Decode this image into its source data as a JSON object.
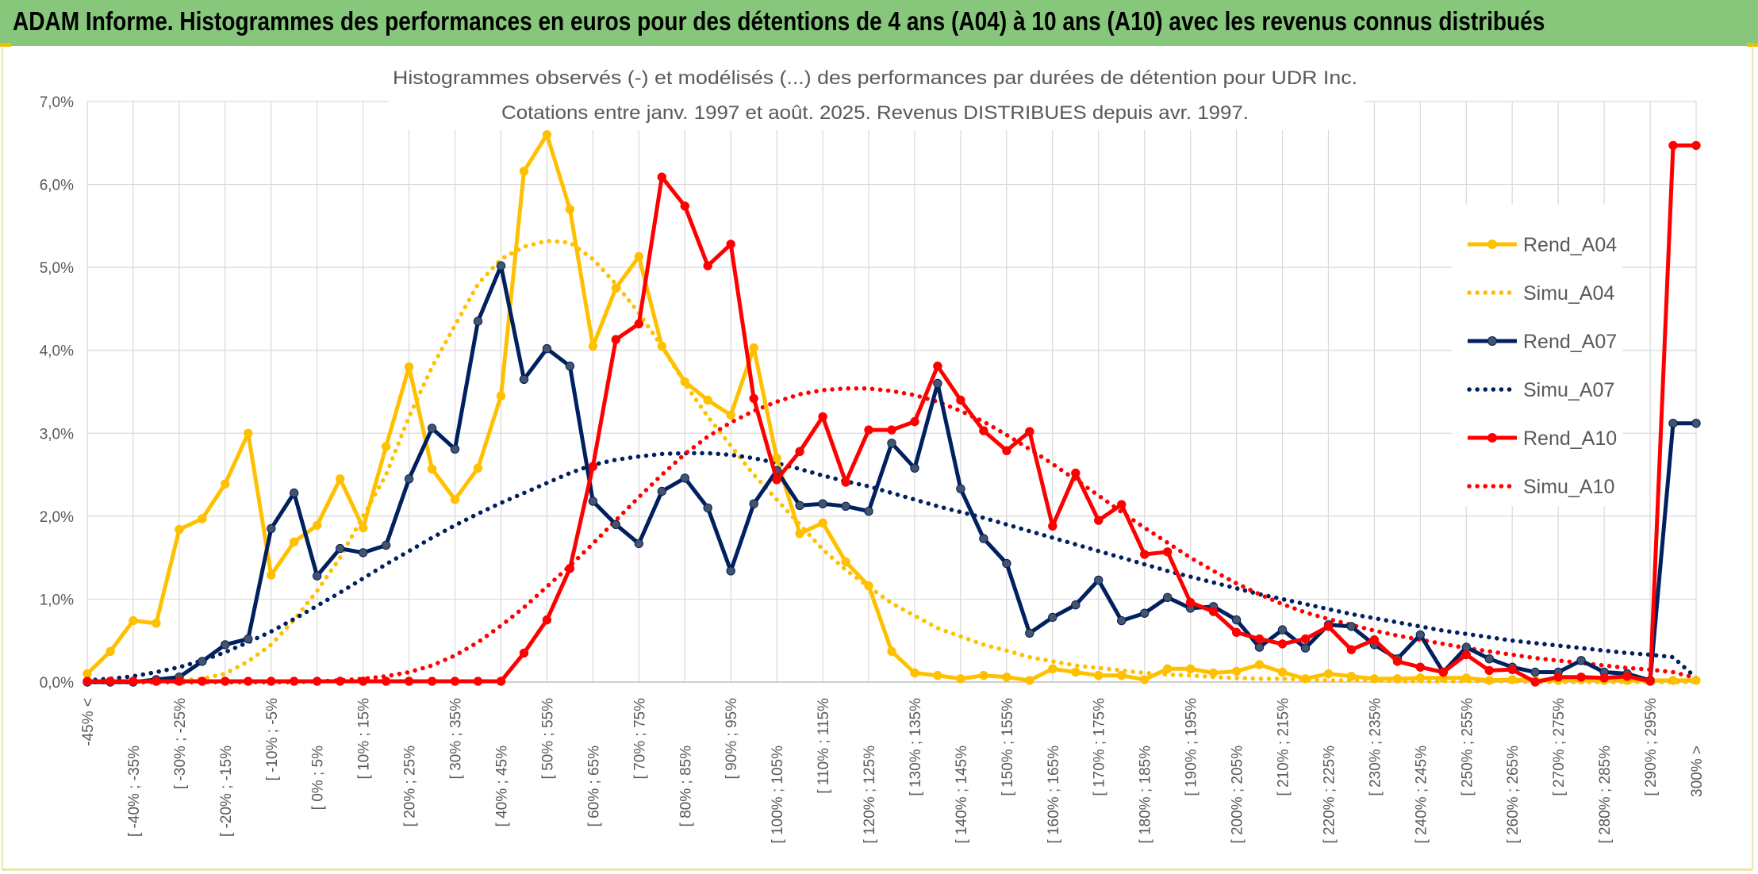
{
  "banner": {
    "title": "ADAM Informe. Histogrammes des performances en euros pour des détentions de 4 ans (A04) à 10 ans (A10) avec les revenus connus distribués"
  },
  "colors": {
    "banner_bg": "#86c77b",
    "rend_a04": "#ffc000",
    "rend_a07": "#002060",
    "rend_a10": "#ff0000",
    "grid": "#d9d9d9",
    "text": "#595959"
  },
  "chart_data": {
    "type": "line",
    "title": "Histogrammes observés (-) et modélisés (...) des performances par durées de détention pour UDR Inc.",
    "subtitle": "Cotations entre janv. 1997 et août. 2025. Revenus DISTRIBUES depuis avr. 1997.",
    "xlabel": "",
    "ylabel": "",
    "ylim": [
      0,
      7
    ],
    "y_ticks": [
      "0,0%",
      "1,0%",
      "2,0%",
      "3,0%",
      "4,0%",
      "5,0%",
      "6,0%",
      "7,0%"
    ],
    "legend_position": "right",
    "grid": true,
    "categories": [
      "-45% <",
      "[ -45% ; -40%",
      "[ -40% ; -35%",
      "[ -35% ; -30%",
      "[ -30% ; -25%",
      "[ -25% ; -20%",
      "[ -20% ; -15%",
      "[ -15% ; -10%",
      "[ -10% ; -5%",
      "[ -5% ; 0%",
      "[ 0% ; 5%",
      "[ 5% ; 10%",
      "[ 10% ; 15%",
      "[ 15% ; 20%",
      "[ 20% ; 25%",
      "[ 25% ; 30%",
      "[ 30% ; 35%",
      "[ 35% ; 40%",
      "[ 40% ; 45%",
      "[ 45% ; 50%",
      "[ 50% ; 55%",
      "[ 55% ; 60%",
      "[ 60% ; 65%",
      "[ 65% ; 70%",
      "[ 70% ; 75%",
      "[ 75% ; 80%",
      "[ 80% ; 85%",
      "[ 85% ; 90%",
      "[ 90% ; 95%",
      "[ 95% ; 100%",
      "[ 100% ; 105%",
      "[ 105% ; 110%",
      "[ 110% ; 115%",
      "[ 115% ; 120%",
      "[ 120% ; 125%",
      "[ 125% ; 130%",
      "[ 130% ; 135%",
      "[ 135% ; 140%",
      "[ 140% ; 145%",
      "[ 145% ; 150%",
      "[ 150% ; 155%",
      "[ 155% ; 160%",
      "[ 160% ; 165%",
      "[ 165% ; 170%",
      "[ 170% ; 175%",
      "[ 175% ; 180%",
      "[ 180% ; 185%",
      "[ 185% ; 190%",
      "[ 190% ; 195%",
      "[ 195% ; 200%",
      "[ 200% ; 205%",
      "[ 205% ; 210%",
      "[ 210% ; 215%",
      "[ 215% ; 220%",
      "[ 220% ; 225%",
      "[ 225% ; 230%",
      "[ 230% ; 235%",
      "[ 235% ; 240%",
      "[ 240% ; 245%",
      "[ 245% ; 250%",
      "[ 250% ; 255%",
      "[ 255% ; 260%",
      "[ 260% ; 265%",
      "[ 265% ; 270%",
      "[ 270% ; 275%",
      "[ 275% ; 280%",
      "[ 280% ; 285%",
      "[ 285% ; 290%",
      "[ 290% ; 295%",
      "[ 295% ; 300%",
      "300% >"
    ],
    "label_every": 2,
    "series": [
      {
        "name": "Rend_A04",
        "style": "solid",
        "color": "#ffc000",
        "values": [
          0.1,
          0.37,
          0.74,
          0.71,
          1.84,
          1.97,
          2.39,
          3.0,
          1.29,
          1.69,
          1.89,
          2.45,
          1.86,
          2.84,
          3.8,
          2.57,
          2.2,
          2.58,
          3.45,
          6.16,
          6.6,
          5.7,
          4.05,
          4.75,
          5.13,
          4.05,
          3.62,
          3.4,
          3.22,
          4.03,
          2.7,
          1.79,
          1.92,
          1.45,
          1.16,
          0.37,
          0.11,
          0.08,
          0.04,
          0.08,
          0.06,
          0.02,
          0.16,
          0.12,
          0.08,
          0.08,
          0.03,
          0.16,
          0.16,
          0.11,
          0.13,
          0.21,
          0.12,
          0.04,
          0.1,
          0.07,
          0.04,
          0.04,
          0.05,
          0.05,
          0.05,
          0.02,
          0.03,
          0.02,
          0.02,
          0.03,
          0.02,
          0.02,
          0.02,
          0.02,
          0.02
        ]
      },
      {
        "name": "Simu_A04",
        "style": "dotted",
        "color": "#ffc000",
        "values": [
          0.0,
          0.0,
          0.0,
          0.0,
          0.02,
          0.04,
          0.1,
          0.25,
          0.45,
          0.75,
          1.1,
          1.5,
          2.0,
          2.5,
          3.2,
          3.8,
          4.3,
          4.8,
          5.1,
          5.25,
          5.32,
          5.3,
          5.1,
          4.8,
          4.45,
          4.05,
          3.6,
          3.2,
          2.85,
          2.5,
          2.2,
          1.9,
          1.6,
          1.35,
          1.15,
          0.95,
          0.8,
          0.65,
          0.55,
          0.45,
          0.38,
          0.3,
          0.25,
          0.2,
          0.17,
          0.14,
          0.11,
          0.09,
          0.08,
          0.06,
          0.05,
          0.04,
          0.04,
          0.03,
          0.02,
          0.02,
          0.02,
          0.01,
          0.01,
          0.01,
          0.01,
          0.01,
          0.01,
          0.0,
          0.0,
          0.0,
          0.0,
          0.0,
          0.0,
          0.0,
          0.0
        ]
      },
      {
        "name": "Rend_A07",
        "style": "solid",
        "color": "#002060",
        "values": [
          0.0,
          0.0,
          0.0,
          0.03,
          0.06,
          0.25,
          0.45,
          0.52,
          1.85,
          2.28,
          1.28,
          1.61,
          1.56,
          1.65,
          2.45,
          3.06,
          2.81,
          4.35,
          5.02,
          3.65,
          4.02,
          3.81,
          2.18,
          1.9,
          1.67,
          2.3,
          2.46,
          2.1,
          1.34,
          2.15,
          2.55,
          2.13,
          2.15,
          2.12,
          2.06,
          2.88,
          2.58,
          3.6,
          2.33,
          1.73,
          1.43,
          0.59,
          0.78,
          0.93,
          1.23,
          0.74,
          0.83,
          1.02,
          0.89,
          0.91,
          0.75,
          0.42,
          0.63,
          0.41,
          0.69,
          0.67,
          0.45,
          0.28,
          0.57,
          0.12,
          0.42,
          0.28,
          0.18,
          0.12,
          0.12,
          0.26,
          0.12,
          0.1,
          0.02,
          3.12,
          3.12
        ]
      },
      {
        "name": "Simu_A07",
        "style": "dotted",
        "color": "#002060",
        "values": [
          0.02,
          0.04,
          0.07,
          0.12,
          0.18,
          0.26,
          0.36,
          0.48,
          0.61,
          0.76,
          0.92,
          1.08,
          1.25,
          1.42,
          1.58,
          1.74,
          1.89,
          2.03,
          2.16,
          2.28,
          2.4,
          2.52,
          2.62,
          2.68,
          2.72,
          2.75,
          2.76,
          2.76,
          2.74,
          2.7,
          2.64,
          2.57,
          2.49,
          2.42,
          2.36,
          2.28,
          2.2,
          2.12,
          2.05,
          1.98,
          1.9,
          1.82,
          1.74,
          1.66,
          1.58,
          1.5,
          1.42,
          1.34,
          1.27,
          1.2,
          1.13,
          1.06,
          1.0,
          0.94,
          0.88,
          0.82,
          0.77,
          0.72,
          0.67,
          0.62,
          0.58,
          0.54,
          0.5,
          0.47,
          0.44,
          0.41,
          0.38,
          0.35,
          0.33,
          0.3,
          0.05
        ]
      },
      {
        "name": "Rend_A10",
        "style": "solid",
        "color": "#ff0000",
        "values": [
          0.01,
          0.01,
          0.01,
          0.01,
          0.01,
          0.01,
          0.01,
          0.01,
          0.01,
          0.01,
          0.01,
          0.01,
          0.01,
          0.01,
          0.01,
          0.01,
          0.01,
          0.01,
          0.01,
          0.35,
          0.75,
          1.37,
          2.6,
          4.13,
          4.32,
          6.09,
          5.74,
          5.02,
          5.28,
          3.42,
          2.44,
          2.78,
          3.2,
          2.41,
          3.04,
          3.04,
          3.14,
          3.81,
          3.4,
          3.03,
          2.79,
          3.02,
          1.88,
          2.52,
          1.95,
          2.14,
          1.54,
          1.57,
          0.96,
          0.85,
          0.6,
          0.52,
          0.46,
          0.52,
          0.67,
          0.39,
          0.51,
          0.25,
          0.18,
          0.12,
          0.33,
          0.14,
          0.15,
          0.0,
          0.06,
          0.06,
          0.05,
          0.07,
          0.01,
          6.47,
          6.47
        ]
      },
      {
        "name": "Simu_A10",
        "style": "dotted",
        "color": "#ff0000",
        "values": [
          0.0,
          0.0,
          0.0,
          0.0,
          0.0,
          0.0,
          0.0,
          0.0,
          0.0,
          0.0,
          0.01,
          0.02,
          0.04,
          0.07,
          0.12,
          0.2,
          0.32,
          0.48,
          0.68,
          0.9,
          1.15,
          1.4,
          1.67,
          1.95,
          2.23,
          2.5,
          2.75,
          2.96,
          3.13,
          3.27,
          3.38,
          3.47,
          3.52,
          3.54,
          3.54,
          3.51,
          3.46,
          3.38,
          3.27,
          3.14,
          2.98,
          2.81,
          2.63,
          2.44,
          2.25,
          2.05,
          1.86,
          1.68,
          1.5,
          1.34,
          1.19,
          1.06,
          0.94,
          0.84,
          0.76,
          0.69,
          0.62,
          0.56,
          0.51,
          0.46,
          0.41,
          0.37,
          0.33,
          0.29,
          0.26,
          0.23,
          0.2,
          0.17,
          0.15,
          0.12,
          0.05
        ]
      }
    ]
  }
}
